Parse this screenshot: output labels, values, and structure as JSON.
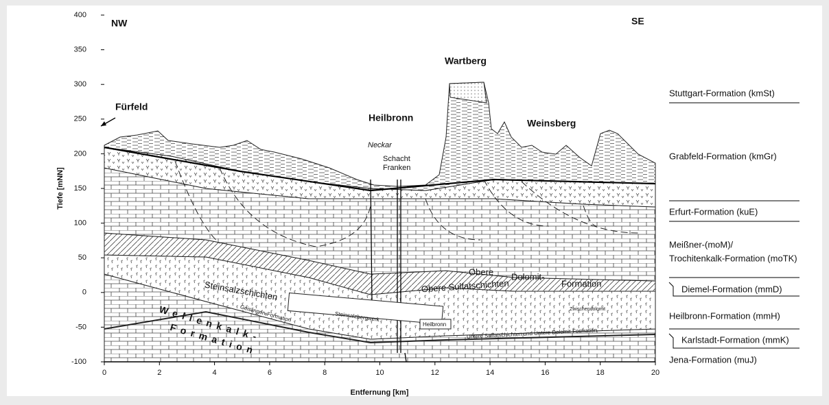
{
  "axes": {
    "y_label": "Tiefe [mNN]",
    "x_label": "Entfernung [km]",
    "ylim": [
      -100,
      400
    ],
    "yticks": [
      -100,
      -50,
      0,
      50,
      100,
      150,
      200,
      250,
      300,
      350,
      400
    ],
    "xlim": [
      0,
      20
    ],
    "xticks": [
      0,
      2,
      4,
      6,
      8,
      10,
      12,
      14,
      16,
      18,
      20
    ]
  },
  "labels": {
    "nw": "NW",
    "se": "SE",
    "fuerfeld": "Fürfeld",
    "heilbronn": "Heilbronn",
    "wartberg": "Wartberg",
    "weinsberg": "Weinsberg",
    "neckar": "Neckar",
    "schacht": [
      "Schacht",
      "Franken"
    ],
    "steinsalzschichten": "Steinsalzschichten",
    "obere_dolomit": [
      "Obere",
      "Dolomit-",
      "Formation"
    ],
    "obere_sulfat": "Obere Sulfatschichten",
    "zwischendolomit": "Zwischendolomit",
    "geislingen": "Geislingen-Formation",
    "steinsalzbergwerk": "Steinsalzbergwerk",
    "heilbronn_box": "Heilbronn",
    "untere": "Untere Sulfatschichten und Untere Dolomit-Formation",
    "wellenkalk": [
      "Wellenkalk-",
      "Formation"
    ]
  },
  "legend": [
    [
      "Stuttgart-Formation (kmSt)"
    ],
    [
      "Grabfeld-Formation (kmGr)"
    ],
    [
      "Erfurt-Formation (kuE)"
    ],
    [
      "Meißner-(moM)/",
      "Trochitenkalk-Formation (moTK)"
    ],
    [
      "Diemel-Formation (mmD)"
    ],
    [
      "Heilbronn-Formation (mmH)"
    ],
    [
      "Karlstadt-Formation (mmK)"
    ],
    [
      "Jena-Formation (muJ)"
    ]
  ]
}
